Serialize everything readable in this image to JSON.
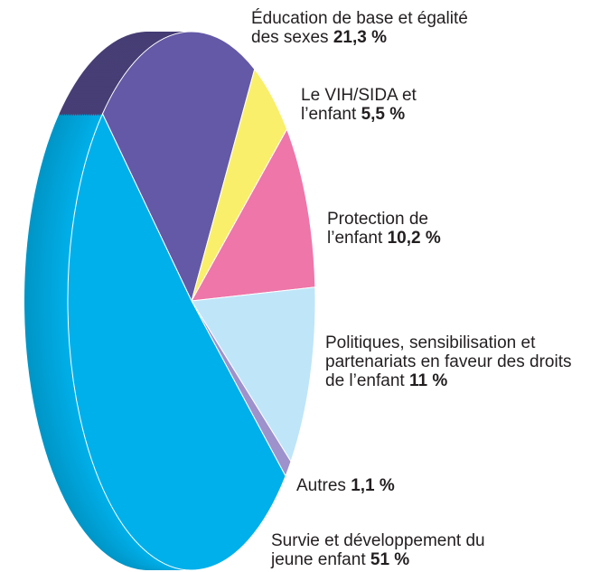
{
  "chart_data": {
    "type": "pie",
    "categories": [
      "Éducation de base et égalité des sexes",
      "Le VIH/SIDA et l’enfant",
      "Protection de l’enfant",
      "Politiques, sensibilisation et partenariats en faveur des droits de l’enfant",
      "Autres",
      "Survie et développement du jeune enfant"
    ],
    "values": [
      21.3,
      5.5,
      10.2,
      11,
      1.1,
      51
    ],
    "value_labels": [
      "21,3 %",
      "5,5 %",
      "10,2 %",
      "11 %",
      "1,1 %",
      "51 %"
    ],
    "colors": [
      "#6459a6",
      "#f9ef6a",
      "#ee76a9",
      "#bfe5f8",
      "#9d92cb",
      "#00b0ea"
    ]
  }
}
